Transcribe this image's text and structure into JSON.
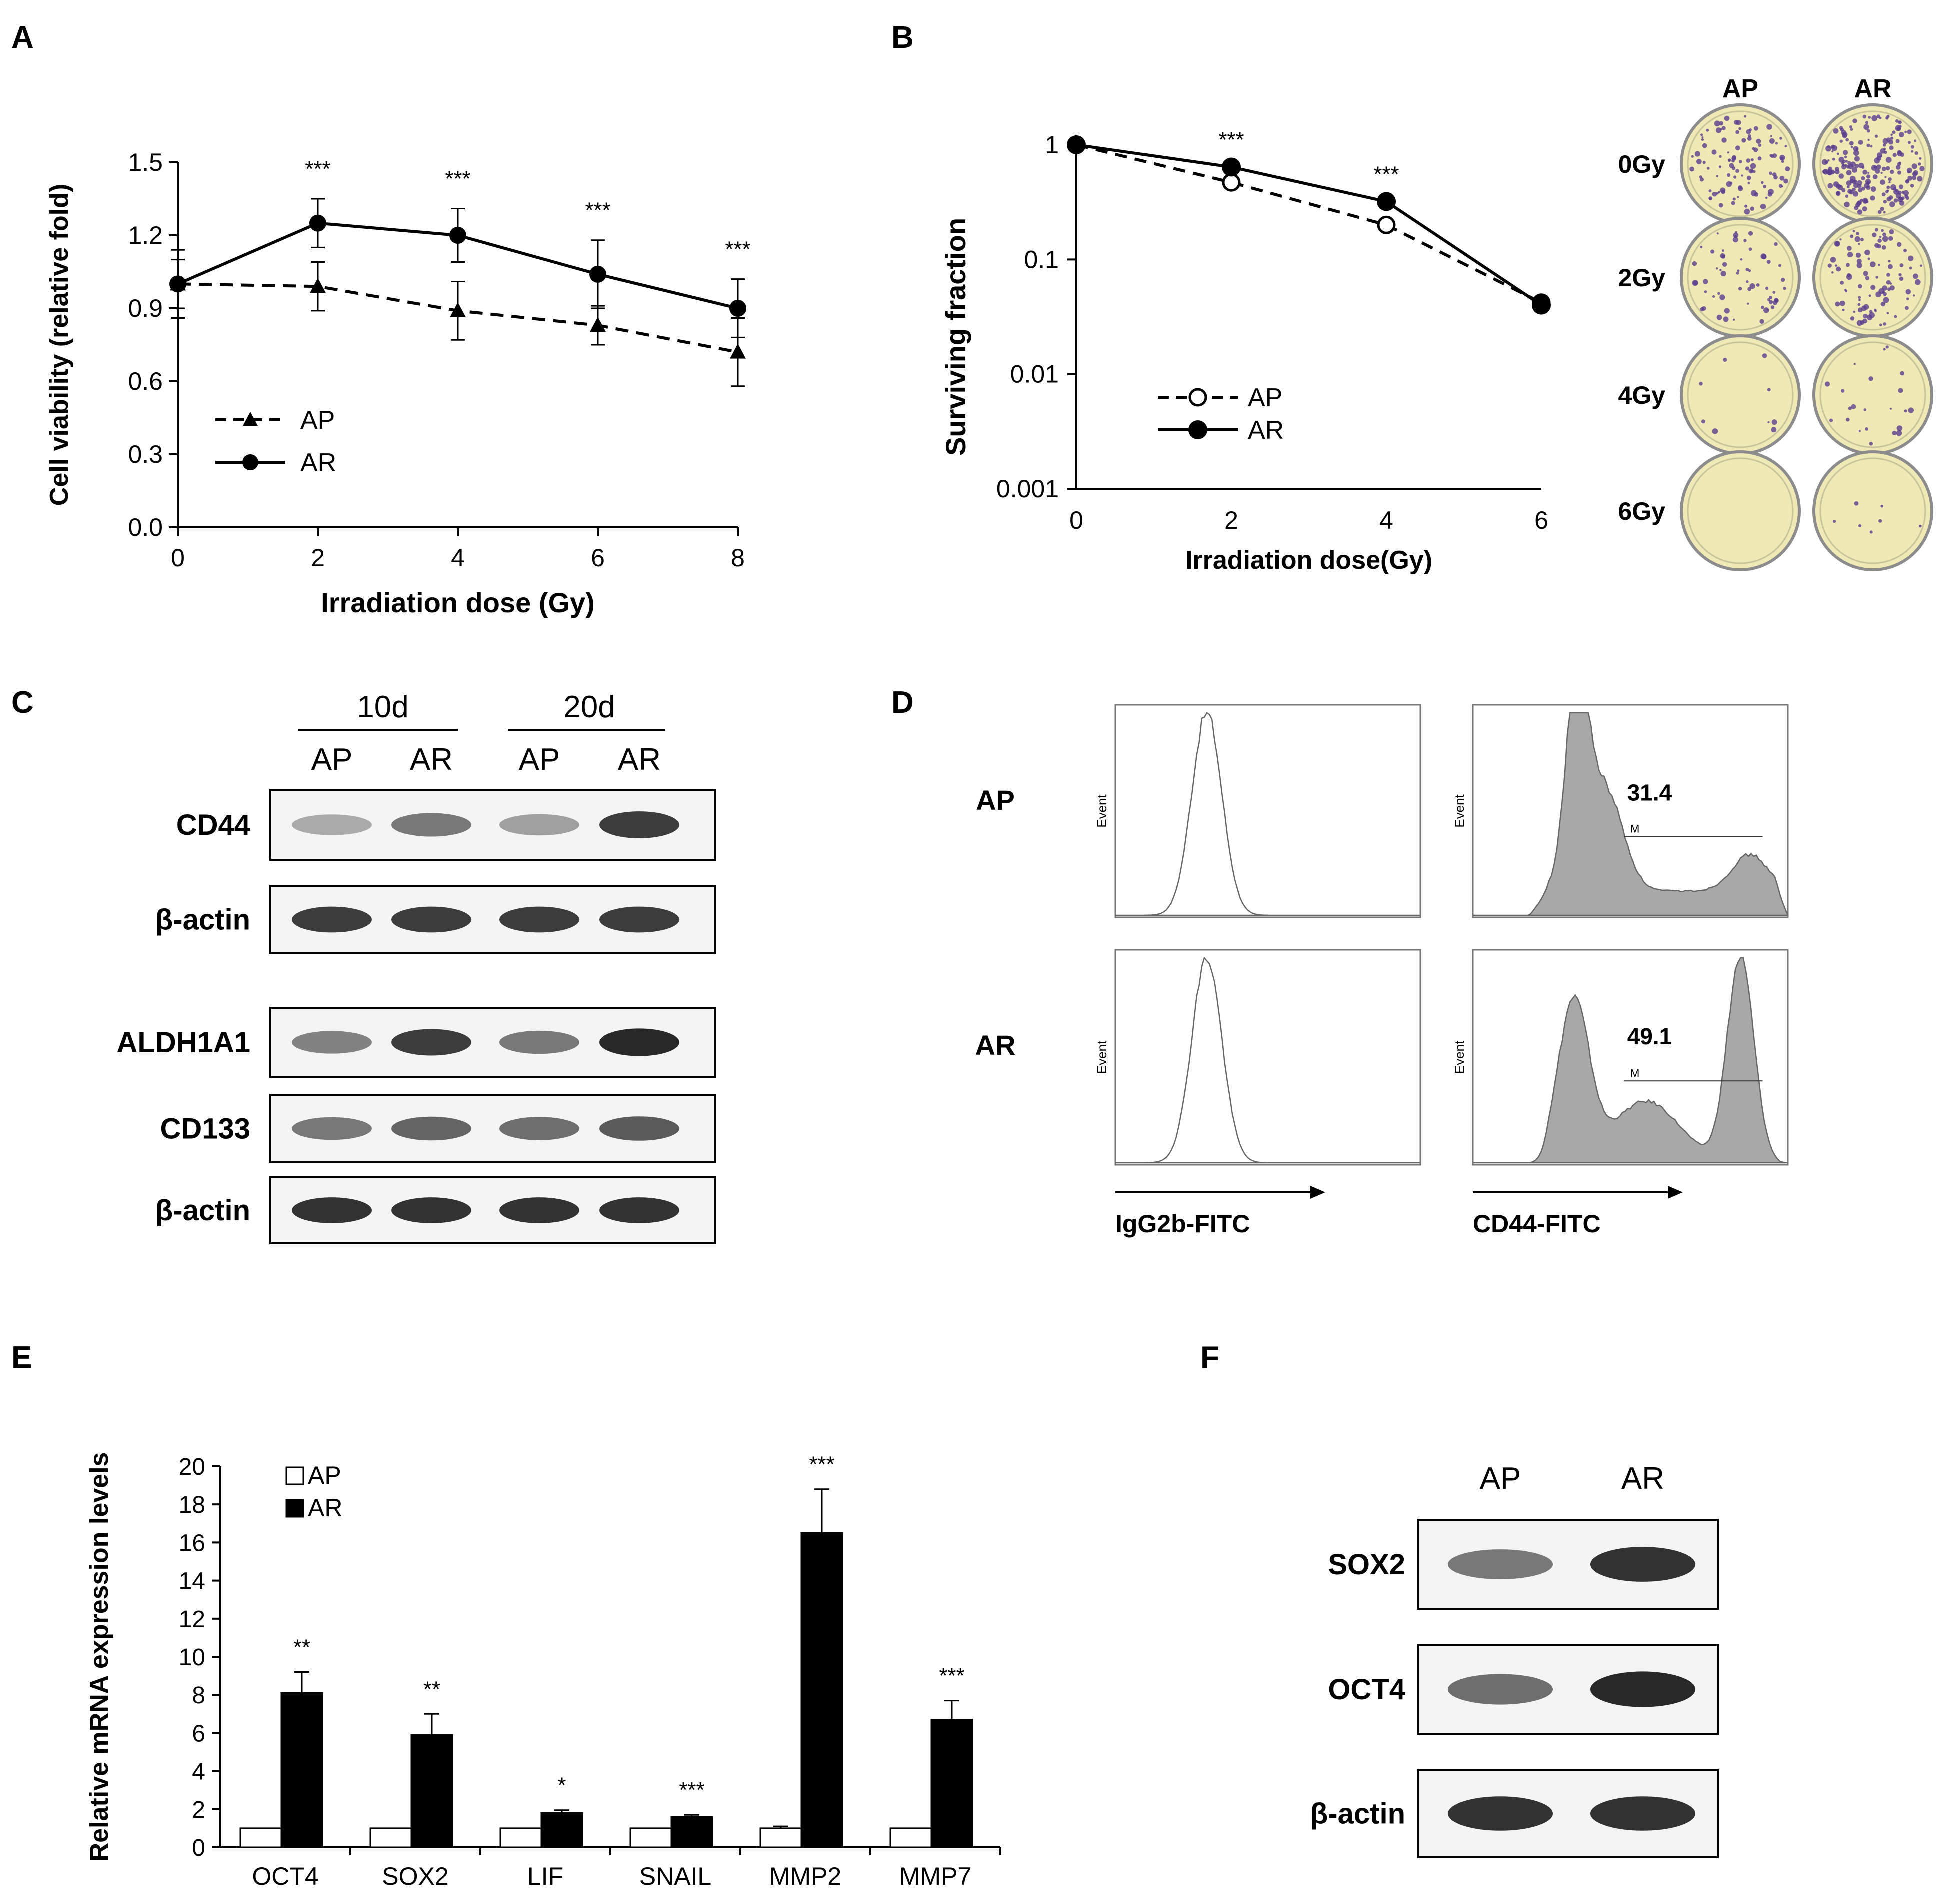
{
  "panels": {
    "A": {
      "label": "A"
    },
    "B": {
      "label": "B"
    },
    "C": {
      "label": "C"
    },
    "D": {
      "label": "D"
    },
    "E": {
      "label": "E"
    },
    "F": {
      "label": "F"
    }
  },
  "chart_data": [
    {
      "id": "A",
      "type": "line",
      "xlabel": "Irradiation dose (Gy)",
      "ylabel": "Cell viability (relative fold)",
      "xlim": [
        0,
        8
      ],
      "ylim": [
        0,
        1.5
      ],
      "xticks": [
        "0",
        "2",
        "4",
        "6",
        "8"
      ],
      "yticks": [
        "0.0",
        "0.3",
        "0.6",
        "0.9",
        "1.2",
        "1.5"
      ],
      "x": [
        0,
        2,
        4,
        6,
        8
      ],
      "series": [
        {
          "name": "AP",
          "values": [
            1.0,
            0.99,
            0.89,
            0.83,
            0.72
          ],
          "errors": [
            0.14,
            0.1,
            0.12,
            0.08,
            0.14
          ],
          "style": "dashed",
          "marker": "triangle"
        },
        {
          "name": "AR",
          "values": [
            1.0,
            1.25,
            1.2,
            1.04,
            0.9
          ],
          "errors": [
            0.1,
            0.1,
            0.11,
            0.14,
            0.12
          ],
          "style": "solid",
          "marker": "circle"
        }
      ],
      "annotations": [
        "",
        "***",
        "***",
        "***",
        "***"
      ],
      "legend": "bottom-left",
      "grid": false
    },
    {
      "id": "B",
      "type": "line",
      "xlabel": "Irradiation dose(Gy)",
      "ylabel": "Surviving fraction",
      "yscale": "log",
      "xlim": [
        0,
        6
      ],
      "ylim": [
        0.001,
        1
      ],
      "xticks": [
        "0",
        "2",
        "4",
        "6"
      ],
      "yticks": [
        "1",
        "0.1",
        "0.01",
        "0.001"
      ],
      "x": [
        0,
        2,
        4,
        6
      ],
      "series": [
        {
          "name": "AP",
          "values": [
            1.0,
            0.47,
            0.2,
            0.042
          ],
          "style": "dashed",
          "marker": "open-circle"
        },
        {
          "name": "AR",
          "values": [
            1.0,
            0.64,
            0.32,
            0.04
          ],
          "style": "solid",
          "marker": "circle"
        }
      ],
      "annotations": [
        "",
        "***",
        "***",
        ""
      ],
      "legend": "bottom-left",
      "grid": false,
      "dish_columns": [
        "AP",
        "AR"
      ],
      "dish_rows": [
        "0Gy",
        "2Gy",
        "4Gy",
        "6Gy"
      ]
    },
    {
      "id": "E",
      "type": "bar",
      "ylabel": "Relative mRNA expression levels",
      "ylim": [
        0,
        20
      ],
      "yticks": [
        "0",
        "2",
        "4",
        "6",
        "8",
        "10",
        "12",
        "14",
        "16",
        "18",
        "20"
      ],
      "categories": [
        "OCT4",
        "SOX2",
        "LIF",
        "SNAIL",
        "MMP2",
        "MMP7"
      ],
      "series": [
        {
          "name": "AP",
          "values": [
            1,
            1,
            1,
            1,
            1,
            1
          ],
          "errors": [
            0,
            0,
            0,
            0,
            0.1,
            0
          ],
          "color": "#ffffff"
        },
        {
          "name": "AR",
          "values": [
            8.1,
            5.9,
            1.8,
            1.6,
            16.5,
            6.7
          ],
          "errors": [
            1.1,
            1.1,
            0.15,
            0.1,
            2.3,
            1.0
          ],
          "color": "#000000"
        }
      ],
      "annotations": [
        "**",
        "**",
        "*",
        "***",
        "***",
        "***"
      ],
      "legend": "top-left",
      "grid": false
    }
  ],
  "blotC": {
    "groups": [
      "10d",
      "20d"
    ],
    "lanes": [
      "AP",
      "AR",
      "AP",
      "AR"
    ],
    "rows": [
      "CD44",
      "β-actin",
      "ALDH1A1",
      "CD133",
      "β-actin"
    ],
    "intensity": [
      [
        0.35,
        0.6,
        0.4,
        0.9
      ],
      [
        0.9,
        0.9,
        0.9,
        0.9
      ],
      [
        0.55,
        0.9,
        0.6,
        1.0
      ],
      [
        0.6,
        0.7,
        0.65,
        0.75
      ],
      [
        0.95,
        0.95,
        0.95,
        0.95
      ]
    ]
  },
  "flowD": {
    "rows": [
      "AP",
      "AR"
    ],
    "left_xlabel": "IgG2b-FITC",
    "right_xlabel": "CD44-FITC",
    "yaxis_label": "Event",
    "gate_label": "M",
    "percentages": [
      "31.4",
      "49.1"
    ]
  },
  "blotF": {
    "lanes": [
      "AP",
      "AR"
    ],
    "rows": [
      "SOX2",
      "OCT4",
      "β-actin"
    ],
    "intensity": [
      [
        0.6,
        0.95
      ],
      [
        0.65,
        1.0
      ],
      [
        0.95,
        0.95
      ]
    ]
  }
}
